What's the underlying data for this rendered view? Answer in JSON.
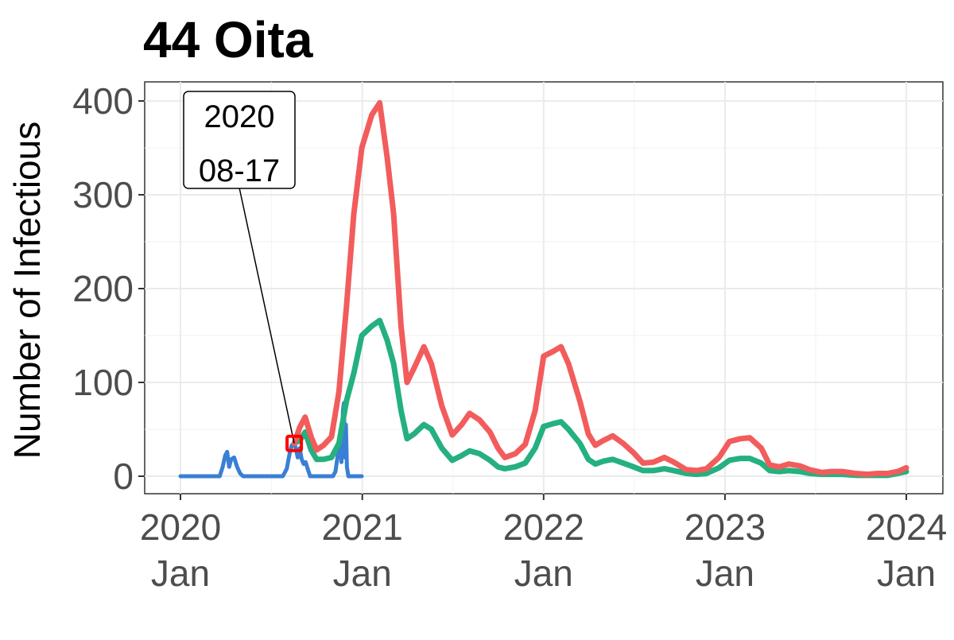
{
  "chart_data": {
    "type": "line",
    "title": "44 Oita",
    "ylabel": "Number of Infectious",
    "xlabel": "",
    "xlim": [
      "2020-01-01",
      "2024-01-01"
    ],
    "ylim": [
      -20,
      420
    ],
    "grid": true,
    "legend": "none",
    "x_ticks": [
      {
        "date": "2020-01-01",
        "year": "2020",
        "month": "Jan"
      },
      {
        "date": "2021-01-01",
        "year": "2021",
        "month": "Jan"
      },
      {
        "date": "2022-01-01",
        "year": "2022",
        "month": "Jan"
      },
      {
        "date": "2023-01-01",
        "year": "2023",
        "month": "Jan"
      },
      {
        "date": "2024-01-01",
        "year": "2024",
        "month": "Jan"
      }
    ],
    "y_ticks": [
      0,
      100,
      200,
      300,
      400
    ],
    "colors": {
      "observed": "#3a7fd5",
      "red_series": "#f25c5c",
      "green_series": "#24b07f",
      "marker": "#ff0000"
    },
    "series": [
      {
        "key": "observed",
        "color": "#3a7fd5",
        "points": [
          [
            "2020-01-01",
            0
          ],
          [
            "2020-03-20",
            0
          ],
          [
            "2020-03-26",
            10
          ],
          [
            "2020-03-31",
            22
          ],
          [
            "2020-04-04",
            26
          ],
          [
            "2020-04-08",
            10
          ],
          [
            "2020-04-12",
            18
          ],
          [
            "2020-04-18",
            20
          ],
          [
            "2020-04-24",
            10
          ],
          [
            "2020-04-30",
            3
          ],
          [
            "2020-05-06",
            0
          ],
          [
            "2020-07-25",
            0
          ],
          [
            "2020-08-02",
            8
          ],
          [
            "2020-08-08",
            25
          ],
          [
            "2020-08-12",
            33
          ],
          [
            "2020-08-17",
            35
          ],
          [
            "2020-08-20",
            30
          ],
          [
            "2020-08-24",
            20
          ],
          [
            "2020-08-28",
            30
          ],
          [
            "2020-09-01",
            18
          ],
          [
            "2020-09-05",
            13
          ],
          [
            "2020-09-09",
            15
          ],
          [
            "2020-09-13",
            8
          ],
          [
            "2020-09-18",
            0
          ],
          [
            "2020-11-03",
            0
          ],
          [
            "2020-11-08",
            5
          ],
          [
            "2020-11-12",
            20
          ],
          [
            "2020-11-15",
            35
          ],
          [
            "2020-11-18",
            45
          ],
          [
            "2020-11-20",
            15
          ],
          [
            "2020-11-23",
            70
          ],
          [
            "2020-11-25",
            78
          ],
          [
            "2020-11-27",
            20
          ],
          [
            "2020-11-29",
            55
          ],
          [
            "2020-12-01",
            10
          ],
          [
            "2020-12-04",
            0
          ],
          [
            "2020-12-31",
            0
          ]
        ]
      },
      {
        "key": "red_series",
        "color": "#f25c5c",
        "points": [
          [
            "2020-08-17",
            35
          ],
          [
            "2020-08-28",
            52
          ],
          [
            "2020-09-08",
            63
          ],
          [
            "2020-09-20",
            42
          ],
          [
            "2020-10-01",
            28
          ],
          [
            "2020-10-15",
            33
          ],
          [
            "2020-10-31",
            42
          ],
          [
            "2020-11-15",
            90
          ],
          [
            "2020-11-30",
            180
          ],
          [
            "2020-12-15",
            280
          ],
          [
            "2020-12-31",
            350
          ],
          [
            "2021-01-20",
            385
          ],
          [
            "2021-02-05",
            398
          ],
          [
            "2021-02-20",
            340
          ],
          [
            "2021-03-05",
            280
          ],
          [
            "2021-03-20",
            160
          ],
          [
            "2021-04-01",
            100
          ],
          [
            "2021-04-15",
            115
          ],
          [
            "2021-05-05",
            138
          ],
          [
            "2021-05-20",
            120
          ],
          [
            "2021-06-10",
            75
          ],
          [
            "2021-07-01",
            44
          ],
          [
            "2021-07-20",
            55
          ],
          [
            "2021-08-05",
            67
          ],
          [
            "2021-08-25",
            60
          ],
          [
            "2021-09-15",
            47
          ],
          [
            "2021-10-01",
            30
          ],
          [
            "2021-10-15",
            20
          ],
          [
            "2021-11-05",
            24
          ],
          [
            "2021-11-25",
            34
          ],
          [
            "2021-12-15",
            70
          ],
          [
            "2022-01-01",
            128
          ],
          [
            "2022-01-20",
            133
          ],
          [
            "2022-02-05",
            138
          ],
          [
            "2022-02-20",
            120
          ],
          [
            "2022-03-15",
            80
          ],
          [
            "2022-04-01",
            45
          ],
          [
            "2022-04-15",
            33
          ],
          [
            "2022-05-01",
            38
          ],
          [
            "2022-05-20",
            43
          ],
          [
            "2022-06-10",
            35
          ],
          [
            "2022-07-01",
            25
          ],
          [
            "2022-07-20",
            14
          ],
          [
            "2022-08-10",
            15
          ],
          [
            "2022-09-01",
            20
          ],
          [
            "2022-09-20",
            15
          ],
          [
            "2022-10-15",
            7
          ],
          [
            "2022-11-05",
            6
          ],
          [
            "2022-11-25",
            8
          ],
          [
            "2022-12-20",
            20
          ],
          [
            "2023-01-10",
            37
          ],
          [
            "2023-02-01",
            40
          ],
          [
            "2023-02-20",
            41
          ],
          [
            "2023-03-15",
            30
          ],
          [
            "2023-04-01",
            12
          ],
          [
            "2023-04-20",
            10
          ],
          [
            "2023-05-10",
            13
          ],
          [
            "2023-06-01",
            11
          ],
          [
            "2023-06-20",
            7
          ],
          [
            "2023-07-15",
            4
          ],
          [
            "2023-08-05",
            5
          ],
          [
            "2023-08-25",
            5
          ],
          [
            "2023-09-20",
            3
          ],
          [
            "2023-10-15",
            2
          ],
          [
            "2023-11-05",
            3
          ],
          [
            "2023-11-25",
            3
          ],
          [
            "2023-12-15",
            5
          ],
          [
            "2024-01-01",
            9
          ]
        ]
      },
      {
        "key": "green_series",
        "color": "#24b07f",
        "points": [
          [
            "2020-08-17",
            35
          ],
          [
            "2020-08-28",
            38
          ],
          [
            "2020-09-08",
            47
          ],
          [
            "2020-09-20",
            28
          ],
          [
            "2020-10-01",
            18
          ],
          [
            "2020-10-15",
            18
          ],
          [
            "2020-10-31",
            20
          ],
          [
            "2020-11-15",
            35
          ],
          [
            "2020-11-30",
            80
          ],
          [
            "2020-12-15",
            110
          ],
          [
            "2020-12-31",
            150
          ],
          [
            "2021-01-20",
            160
          ],
          [
            "2021-02-05",
            166
          ],
          [
            "2021-02-20",
            145
          ],
          [
            "2021-03-05",
            120
          ],
          [
            "2021-03-20",
            70
          ],
          [
            "2021-04-01",
            40
          ],
          [
            "2021-04-15",
            45
          ],
          [
            "2021-05-05",
            55
          ],
          [
            "2021-05-20",
            50
          ],
          [
            "2021-06-10",
            30
          ],
          [
            "2021-07-01",
            17
          ],
          [
            "2021-07-20",
            22
          ],
          [
            "2021-08-05",
            27
          ],
          [
            "2021-08-25",
            24
          ],
          [
            "2021-09-15",
            17
          ],
          [
            "2021-10-01",
            10
          ],
          [
            "2021-10-15",
            8
          ],
          [
            "2021-11-05",
            10
          ],
          [
            "2021-11-25",
            14
          ],
          [
            "2021-12-15",
            30
          ],
          [
            "2022-01-01",
            53
          ],
          [
            "2022-01-20",
            56
          ],
          [
            "2022-02-05",
            58
          ],
          [
            "2022-02-20",
            50
          ],
          [
            "2022-03-15",
            35
          ],
          [
            "2022-04-01",
            18
          ],
          [
            "2022-04-15",
            13
          ],
          [
            "2022-05-01",
            16
          ],
          [
            "2022-05-20",
            18
          ],
          [
            "2022-06-10",
            14
          ],
          [
            "2022-07-01",
            10
          ],
          [
            "2022-07-20",
            6
          ],
          [
            "2022-08-10",
            6
          ],
          [
            "2022-09-01",
            8
          ],
          [
            "2022-09-20",
            6
          ],
          [
            "2022-10-15",
            3
          ],
          [
            "2022-11-05",
            2
          ],
          [
            "2022-11-25",
            3
          ],
          [
            "2022-12-20",
            9
          ],
          [
            "2023-01-10",
            17
          ],
          [
            "2023-02-01",
            19
          ],
          [
            "2023-02-20",
            19
          ],
          [
            "2023-03-15",
            14
          ],
          [
            "2023-04-01",
            6
          ],
          [
            "2023-04-20",
            5
          ],
          [
            "2023-05-10",
            6
          ],
          [
            "2023-06-01",
            5
          ],
          [
            "2023-06-20",
            3
          ],
          [
            "2023-07-15",
            2
          ],
          [
            "2023-08-05",
            2
          ],
          [
            "2023-08-25",
            2
          ],
          [
            "2023-09-20",
            1
          ],
          [
            "2023-10-15",
            1
          ],
          [
            "2023-11-05",
            1
          ],
          [
            "2023-11-25",
            1
          ],
          [
            "2023-12-15",
            3
          ],
          [
            "2024-01-01",
            5
          ]
        ]
      }
    ],
    "annotation": {
      "date": "2020-08-17",
      "value": 35,
      "line1": "2020",
      "line2": "08-17"
    }
  }
}
